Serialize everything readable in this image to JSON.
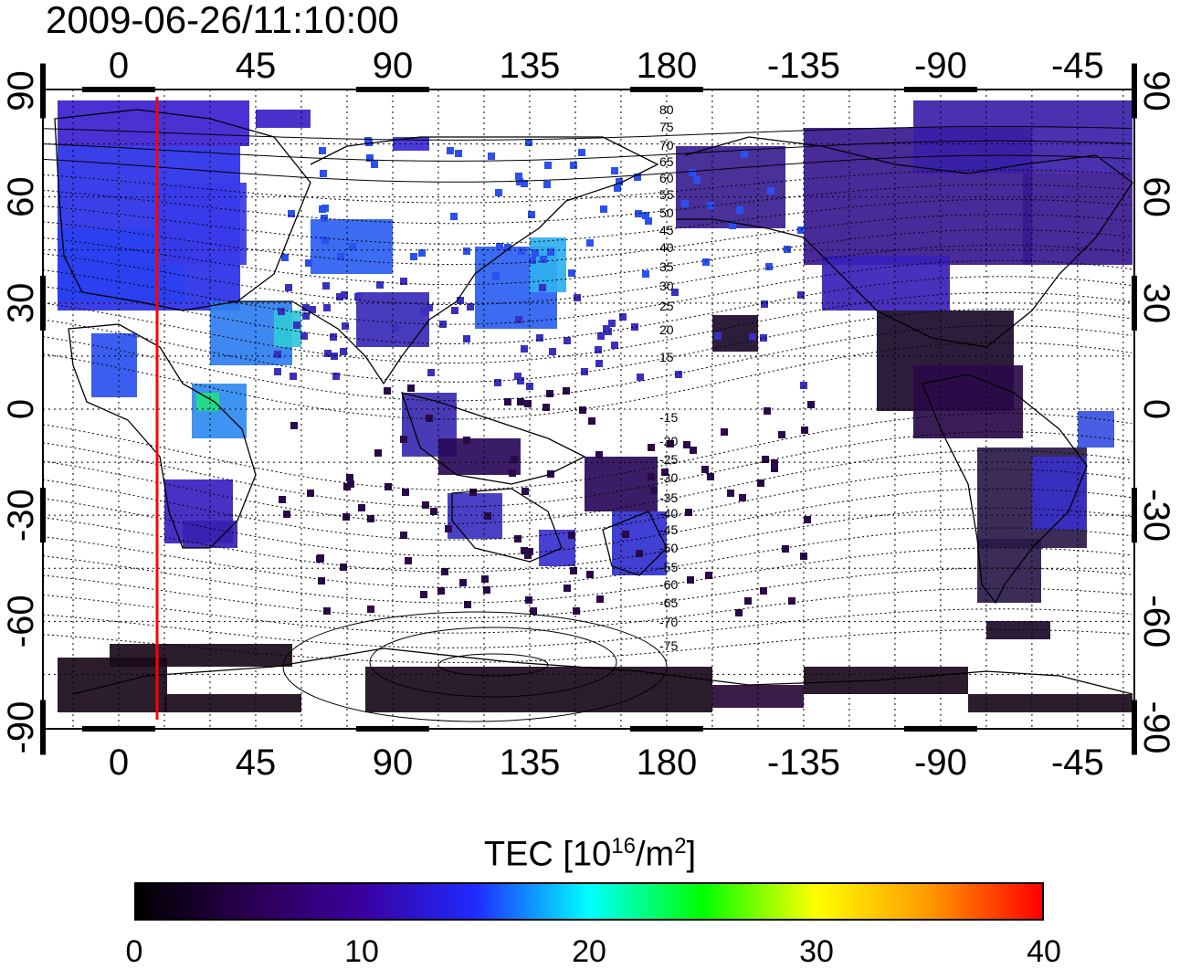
{
  "title": "2009-06-26/11:10:00",
  "map": {
    "top_lon_labels": [
      "0",
      "45",
      "90",
      "135",
      "180",
      "-135",
      "-90",
      "-45"
    ],
    "bottom_lon_labels": [
      "0",
      "45",
      "90",
      "135",
      "180",
      "-135",
      "-90",
      "-45"
    ],
    "left_lat_labels": [
      "90",
      "60",
      "30",
      "0",
      "-30",
      "-60",
      "-90"
    ],
    "right_lat_labels": [
      "90",
      "60",
      "30",
      "0",
      "-30",
      "-60",
      "-90"
    ],
    "contour_labels": [
      "80",
      "75",
      "70",
      "65",
      "60",
      "55",
      "50",
      "45",
      "40",
      "35",
      "30",
      "25",
      "20",
      "15",
      "-15",
      "-20",
      "-25",
      "-30",
      "-35",
      "-40",
      "-45",
      "-50",
      "-55",
      "-60",
      "-65",
      "-70",
      "-75"
    ],
    "terminator_line_color": "#ff0000",
    "grid": true,
    "projection": "equirectangular"
  },
  "colorbar": {
    "title_main": "TEC  [10",
    "title_exp1": "16",
    "title_mid": "/m",
    "title_exp2": "2",
    "title_end": "]",
    "ticks": [
      "0",
      "10",
      "20",
      "30",
      "40"
    ],
    "colors": [
      "#000000",
      "#2a0050",
      "#3a00a0",
      "#1f2bff",
      "#00ffff",
      "#00ff00",
      "#ffff00",
      "#ff9900",
      "#ff0000"
    ]
  }
}
